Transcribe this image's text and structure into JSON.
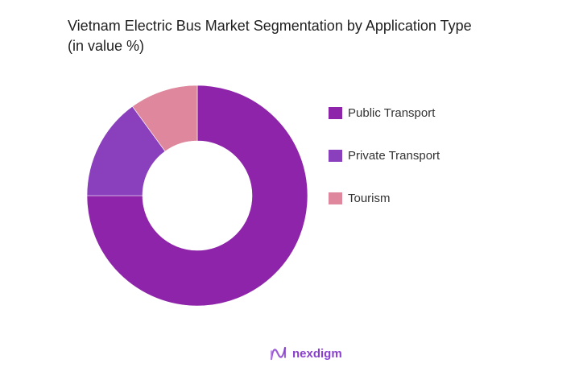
{
  "title": {
    "line1": "Vietnam Electric Bus Market Segmentation by Application Type",
    "line2": "(in value %)"
  },
  "chart_data": {
    "type": "pie",
    "variant": "donut",
    "title": "Vietnam Electric Bus Market Segmentation by Application Type (in value %)",
    "categories": [
      "Public Transport",
      "Private Transport",
      "Tourism"
    ],
    "values": [
      75,
      15,
      10
    ],
    "colors": [
      "#8e24aa",
      "#8a3fbd",
      "#de879d"
    ],
    "legend_position": "right",
    "start_angle": "top",
    "direction": "clockwise"
  },
  "legend": {
    "items": [
      {
        "label": "Public Transport",
        "color": "#8e24aa"
      },
      {
        "label": "Private Transport",
        "color": "#8a3fbd"
      },
      {
        "label": "Tourism",
        "color": "#de879d"
      }
    ]
  },
  "brand": {
    "name": "nexdigm",
    "icon": "nexdigm-wave-logo-icon",
    "color": "#8a3fd1"
  }
}
